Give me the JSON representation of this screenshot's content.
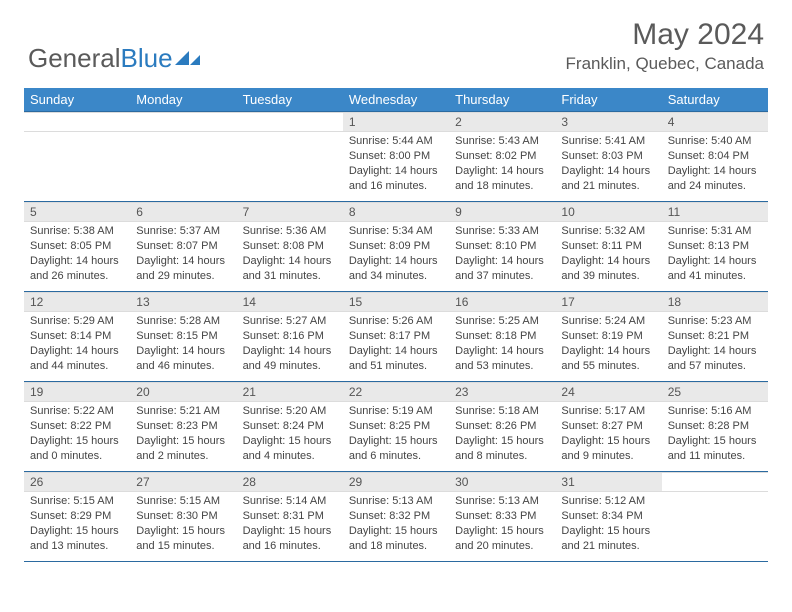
{
  "logo": {
    "text1": "General",
    "text2": "Blue"
  },
  "title": "May 2024",
  "location": "Franklin, Quebec, Canada",
  "colors": {
    "header_bg": "#3b87c8",
    "header_border": "#2b6aa0",
    "daynum_bg": "#e9e9e9",
    "text_gray": "#5a5a5a",
    "logo_blue": "#2b7bbf"
  },
  "daysOfWeek": [
    "Sunday",
    "Monday",
    "Tuesday",
    "Wednesday",
    "Thursday",
    "Friday",
    "Saturday"
  ],
  "weeks": [
    [
      {
        "blank": true
      },
      {
        "blank": true
      },
      {
        "blank": true
      },
      {
        "n": "1",
        "sr": "5:44 AM",
        "ss": "8:00 PM",
        "dl": "14 hours and 16 minutes."
      },
      {
        "n": "2",
        "sr": "5:43 AM",
        "ss": "8:02 PM",
        "dl": "14 hours and 18 minutes."
      },
      {
        "n": "3",
        "sr": "5:41 AM",
        "ss": "8:03 PM",
        "dl": "14 hours and 21 minutes."
      },
      {
        "n": "4",
        "sr": "5:40 AM",
        "ss": "8:04 PM",
        "dl": "14 hours and 24 minutes."
      }
    ],
    [
      {
        "n": "5",
        "sr": "5:38 AM",
        "ss": "8:05 PM",
        "dl": "14 hours and 26 minutes."
      },
      {
        "n": "6",
        "sr": "5:37 AM",
        "ss": "8:07 PM",
        "dl": "14 hours and 29 minutes."
      },
      {
        "n": "7",
        "sr": "5:36 AM",
        "ss": "8:08 PM",
        "dl": "14 hours and 31 minutes."
      },
      {
        "n": "8",
        "sr": "5:34 AM",
        "ss": "8:09 PM",
        "dl": "14 hours and 34 minutes."
      },
      {
        "n": "9",
        "sr": "5:33 AM",
        "ss": "8:10 PM",
        "dl": "14 hours and 37 minutes."
      },
      {
        "n": "10",
        "sr": "5:32 AM",
        "ss": "8:11 PM",
        "dl": "14 hours and 39 minutes."
      },
      {
        "n": "11",
        "sr": "5:31 AM",
        "ss": "8:13 PM",
        "dl": "14 hours and 41 minutes."
      }
    ],
    [
      {
        "n": "12",
        "sr": "5:29 AM",
        "ss": "8:14 PM",
        "dl": "14 hours and 44 minutes."
      },
      {
        "n": "13",
        "sr": "5:28 AM",
        "ss": "8:15 PM",
        "dl": "14 hours and 46 minutes."
      },
      {
        "n": "14",
        "sr": "5:27 AM",
        "ss": "8:16 PM",
        "dl": "14 hours and 49 minutes."
      },
      {
        "n": "15",
        "sr": "5:26 AM",
        "ss": "8:17 PM",
        "dl": "14 hours and 51 minutes."
      },
      {
        "n": "16",
        "sr": "5:25 AM",
        "ss": "8:18 PM",
        "dl": "14 hours and 53 minutes."
      },
      {
        "n": "17",
        "sr": "5:24 AM",
        "ss": "8:19 PM",
        "dl": "14 hours and 55 minutes."
      },
      {
        "n": "18",
        "sr": "5:23 AM",
        "ss": "8:21 PM",
        "dl": "14 hours and 57 minutes."
      }
    ],
    [
      {
        "n": "19",
        "sr": "5:22 AM",
        "ss": "8:22 PM",
        "dl": "15 hours and 0 minutes."
      },
      {
        "n": "20",
        "sr": "5:21 AM",
        "ss": "8:23 PM",
        "dl": "15 hours and 2 minutes."
      },
      {
        "n": "21",
        "sr": "5:20 AM",
        "ss": "8:24 PM",
        "dl": "15 hours and 4 minutes."
      },
      {
        "n": "22",
        "sr": "5:19 AM",
        "ss": "8:25 PM",
        "dl": "15 hours and 6 minutes."
      },
      {
        "n": "23",
        "sr": "5:18 AM",
        "ss": "8:26 PM",
        "dl": "15 hours and 8 minutes."
      },
      {
        "n": "24",
        "sr": "5:17 AM",
        "ss": "8:27 PM",
        "dl": "15 hours and 9 minutes."
      },
      {
        "n": "25",
        "sr": "5:16 AM",
        "ss": "8:28 PM",
        "dl": "15 hours and 11 minutes."
      }
    ],
    [
      {
        "n": "26",
        "sr": "5:15 AM",
        "ss": "8:29 PM",
        "dl": "15 hours and 13 minutes."
      },
      {
        "n": "27",
        "sr": "5:15 AM",
        "ss": "8:30 PM",
        "dl": "15 hours and 15 minutes."
      },
      {
        "n": "28",
        "sr": "5:14 AM",
        "ss": "8:31 PM",
        "dl": "15 hours and 16 minutes."
      },
      {
        "n": "29",
        "sr": "5:13 AM",
        "ss": "8:32 PM",
        "dl": "15 hours and 18 minutes."
      },
      {
        "n": "30",
        "sr": "5:13 AM",
        "ss": "8:33 PM",
        "dl": "15 hours and 20 minutes."
      },
      {
        "n": "31",
        "sr": "5:12 AM",
        "ss": "8:34 PM",
        "dl": "15 hours and 21 minutes."
      },
      {
        "blank": true
      }
    ]
  ],
  "labels": {
    "sunrise": "Sunrise:",
    "sunset": "Sunset:",
    "daylight": "Daylight:"
  }
}
